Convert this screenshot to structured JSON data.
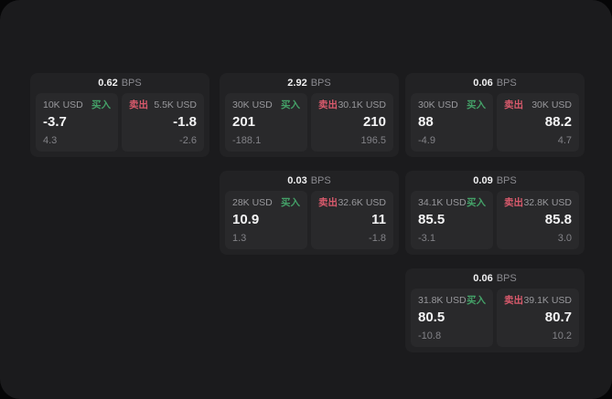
{
  "labels": {
    "bps_unit": "BPS",
    "buy": "买入",
    "sell": "卖出"
  },
  "colors": {
    "buy_accent": "#44a168",
    "sell_accent": "#d95a6c",
    "window_bg": "#1b1b1d",
    "card_bg": "#222224",
    "panel_bg": "#29292b"
  },
  "cards": [
    {
      "bps": "0.62",
      "buy": {
        "size": "10K USD",
        "price": "-3.7",
        "delta": "4.3"
      },
      "sell": {
        "size": "5.5K USD",
        "price": "-1.8",
        "delta": "-2.6"
      }
    },
    {
      "bps": "2.92",
      "buy": {
        "size": "30K USD",
        "price": "201",
        "delta": "-188.1"
      },
      "sell": {
        "size": "30.1K USD",
        "price": "210",
        "delta": "196.5"
      }
    },
    {
      "bps": "0.06",
      "buy": {
        "size": "30K USD",
        "price": "88",
        "delta": "-4.9"
      },
      "sell": {
        "size": "30K USD",
        "price": "88.2",
        "delta": "4.7"
      }
    },
    {
      "bps": "0.03",
      "buy": {
        "size": "28K USD",
        "price": "10.9",
        "delta": "1.3"
      },
      "sell": {
        "size": "32.6K USD",
        "price": "11",
        "delta": "-1.8"
      }
    },
    {
      "bps": "0.09",
      "buy": {
        "size": "34.1K USD",
        "price": "85.5",
        "delta": "-3.1"
      },
      "sell": {
        "size": "32.8K USD",
        "price": "85.8",
        "delta": "3.0"
      }
    },
    {
      "bps": "0.06",
      "buy": {
        "size": "31.8K USD",
        "price": "80.5",
        "delta": "-10.8"
      },
      "sell": {
        "size": "39.1K USD",
        "price": "80.7",
        "delta": "10.2"
      }
    }
  ]
}
